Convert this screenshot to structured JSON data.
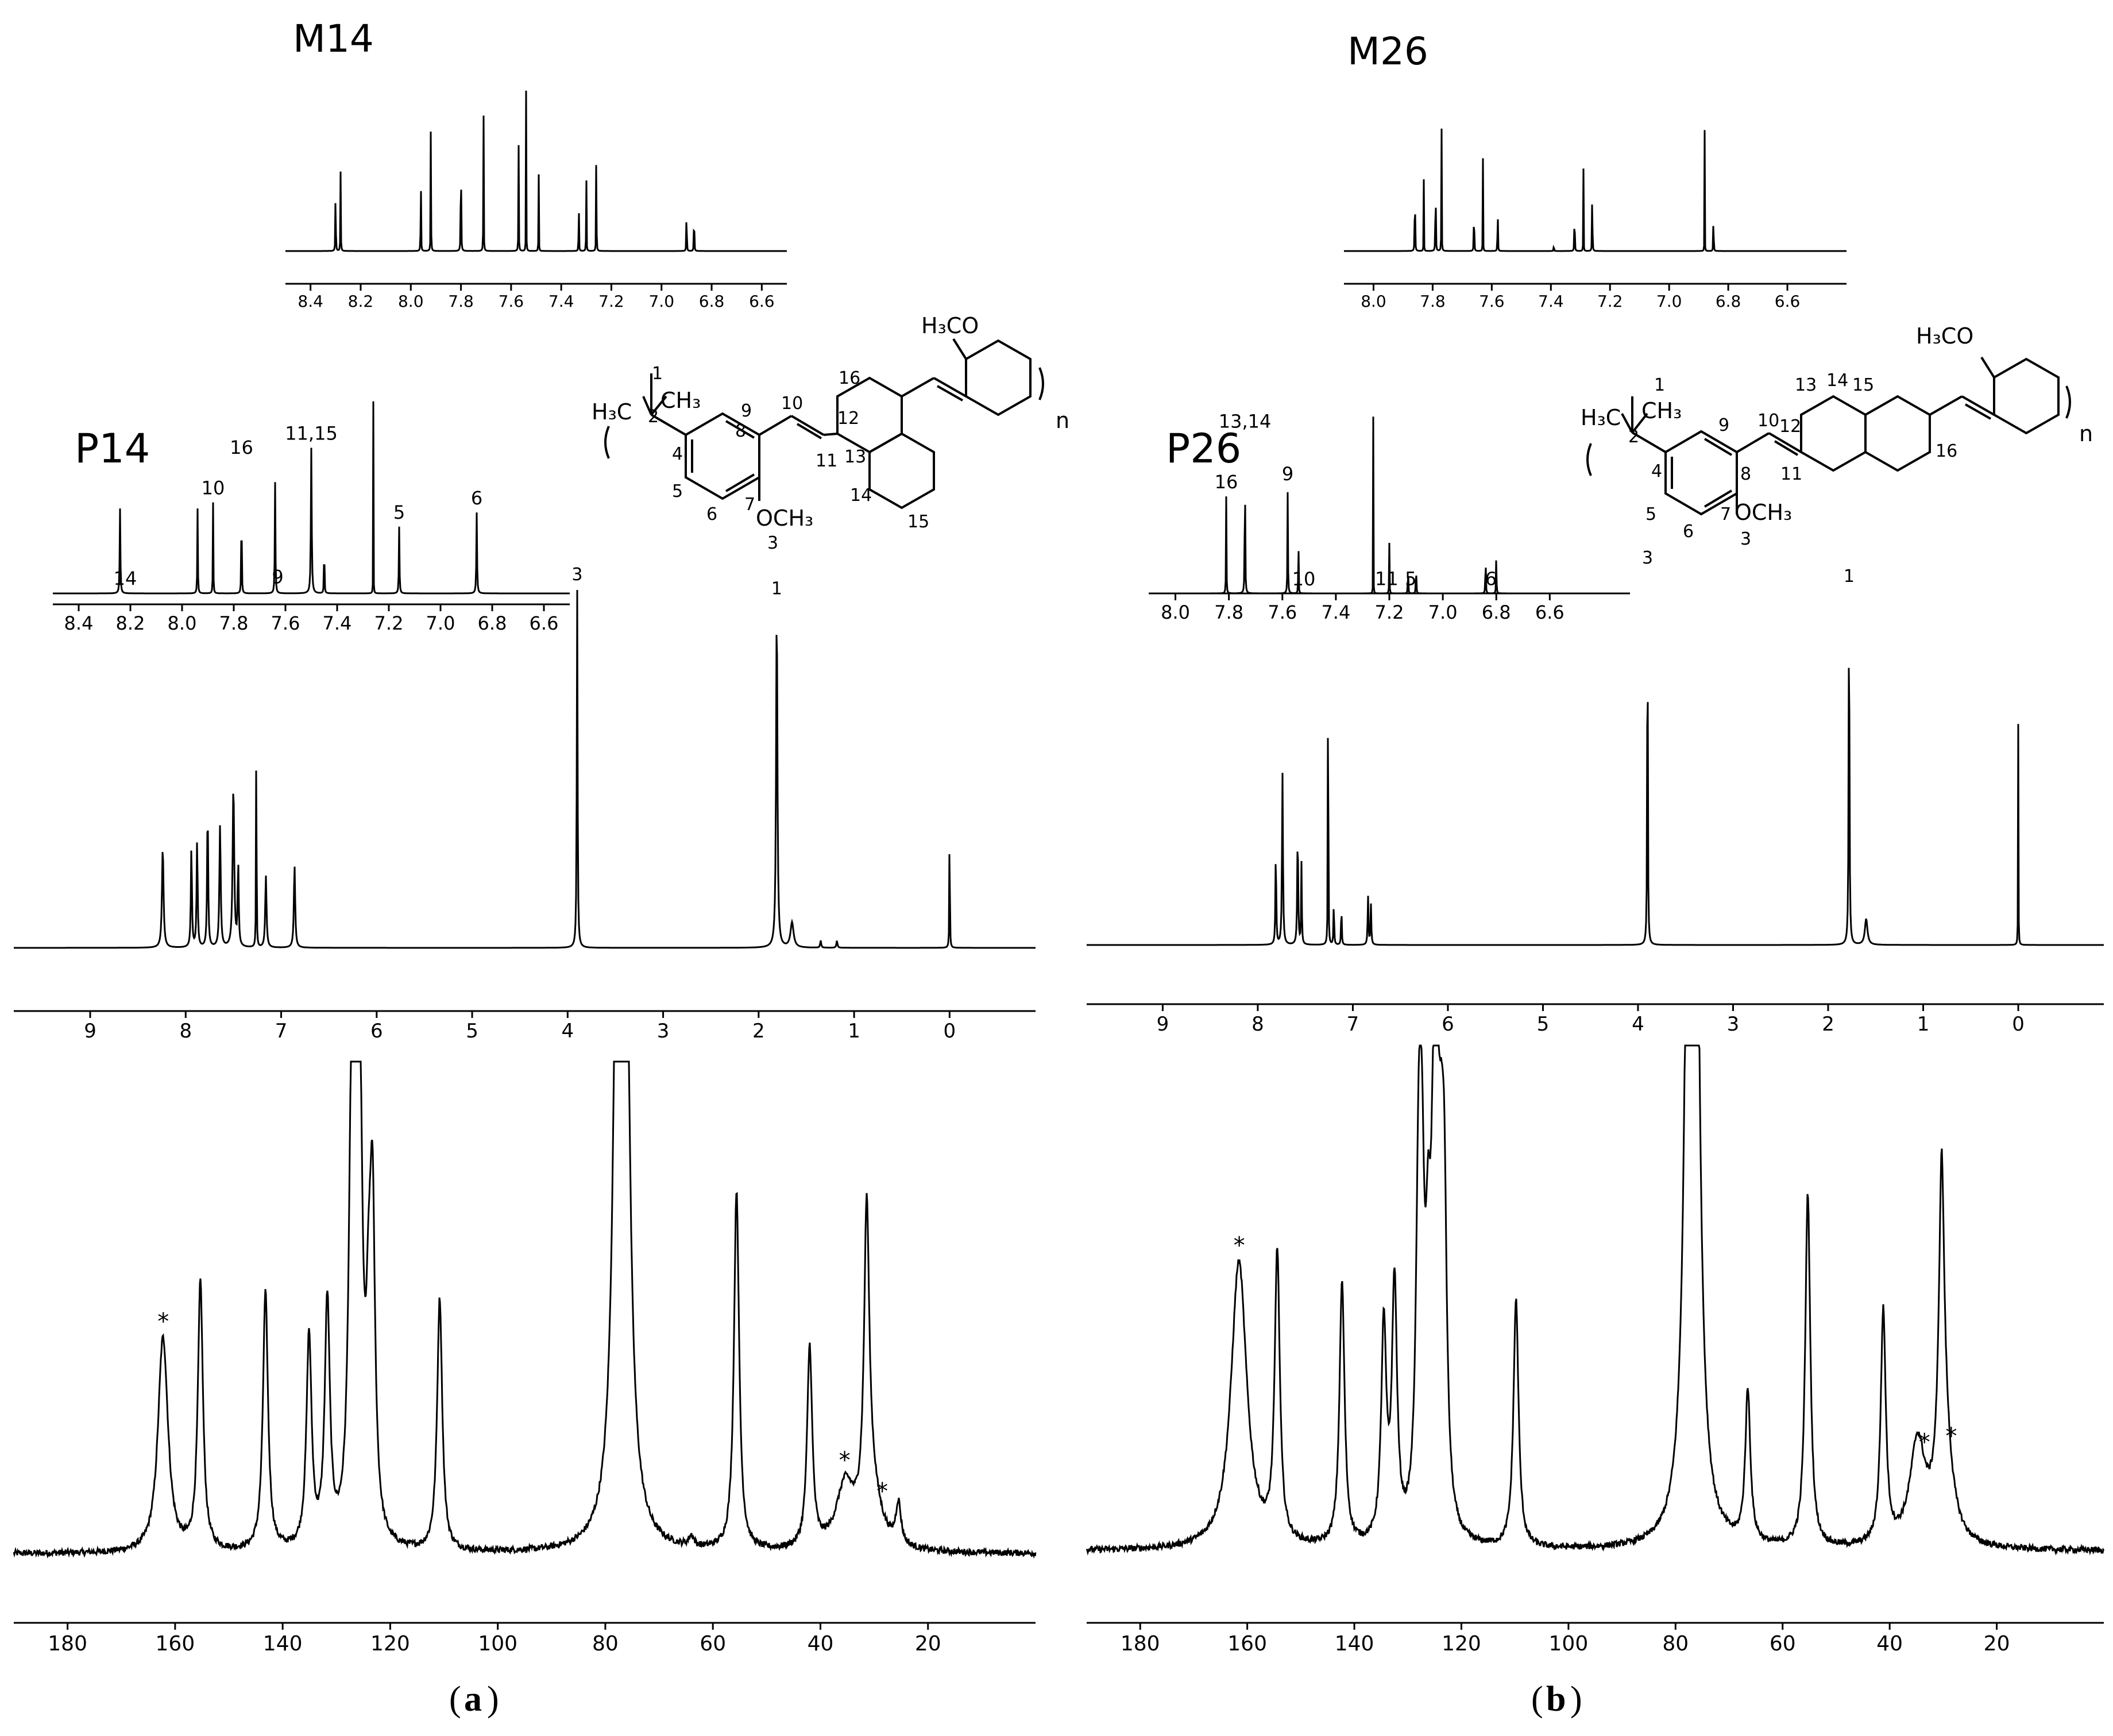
{
  "figure": {
    "panel_a_label": "a",
    "panel_b_label": "b",
    "paren_open": "(",
    "paren_close": ")",
    "ink_color": "#000000",
    "background_color": "#ffffff"
  },
  "chemistry": {
    "P14": {
      "substituent_methyl": "H₃C",
      "substituent_methyl2": "CH₃",
      "methoxy_side": "OCH₃",
      "methoxy_top": "H₃CO",
      "repeat_n": "n",
      "atom_labels": [
        "1",
        "2",
        "3",
        "4",
        "5",
        "6",
        "7",
        "8",
        "9",
        "10",
        "11",
        "12",
        "13",
        "14",
        "15",
        "16"
      ]
    },
    "P26": {
      "substituent_methyl": "H₃C",
      "substituent_methyl2": "CH₃",
      "methoxy_side": "OCH₃",
      "methoxy_top": "H₃CO",
      "repeat_n": "n",
      "atom_labels": [
        "1",
        "2",
        "3",
        "4",
        "5",
        "6",
        "7",
        "8",
        "9",
        "10",
        "11",
        "12",
        "13",
        "14",
        "15",
        "16"
      ]
    }
  },
  "chart_data": [
    {
      "id": "M14_inset",
      "type": "line",
      "title": "M14",
      "xlabel": "",
      "ylabel": "",
      "xlim": [
        8.5,
        6.5
      ],
      "x_ticks": [
        8.4,
        8.2,
        8.0,
        7.8,
        7.6,
        7.4,
        7.2,
        7.0,
        6.8,
        6.6
      ],
      "x_tick_labels": [
        "8.4",
        "8.2",
        "8.0",
        "7.8",
        "7.6",
        "7.4",
        "7.2",
        "7.0",
        "6.8",
        "6.6"
      ],
      "peaks": [
        {
          "x": 8.3,
          "h": 0.35,
          "w": 0.013
        },
        {
          "x": 8.28,
          "h": 0.33,
          "w": 0.013
        },
        {
          "x": 7.96,
          "h": 0.55,
          "w": 0.01
        },
        {
          "x": 7.92,
          "h": 0.7,
          "w": 0.01
        },
        {
          "x": 7.8,
          "h": 1.0,
          "w": 0.01
        },
        {
          "x": 7.71,
          "h": 0.78,
          "w": 0.01
        },
        {
          "x": 7.57,
          "h": 0.45,
          "w": 0.012
        },
        {
          "x": 7.54,
          "h": 0.68,
          "w": 0.009
        },
        {
          "x": 7.49,
          "h": 0.42,
          "w": 0.009
        },
        {
          "x": 7.33,
          "h": 0.4,
          "w": 0.009
        },
        {
          "x": 7.3,
          "h": 0.5,
          "w": 0.009
        },
        {
          "x": 7.26,
          "h": 0.9,
          "w": 0.008
        },
        {
          "x": 6.9,
          "h": 0.55,
          "w": 0.008
        },
        {
          "x": 6.87,
          "h": 0.55,
          "w": 0.008
        }
      ],
      "peak_labels": []
    },
    {
      "id": "M26_inset",
      "type": "line",
      "title": "M26",
      "xlabel": "",
      "ylabel": "",
      "xlim": [
        8.1,
        6.4
      ],
      "x_ticks": [
        8.0,
        7.8,
        7.6,
        7.4,
        7.2,
        7.0,
        6.8,
        6.6
      ],
      "x_tick_labels": [
        "8.0",
        "7.8",
        "7.6",
        "7.4",
        "7.2",
        "7.0",
        "6.8",
        "6.6"
      ],
      "peaks": [
        {
          "x": 7.86,
          "h": 0.75,
          "w": 0.009
        },
        {
          "x": 7.83,
          "h": 0.3,
          "w": 0.009
        },
        {
          "x": 7.79,
          "h": 0.8,
          "w": 0.009
        },
        {
          "x": 7.77,
          "h": 0.7,
          "w": 0.009
        },
        {
          "x": 7.66,
          "h": 0.6,
          "w": 0.008
        },
        {
          "x": 7.63,
          "h": 0.45,
          "w": 0.008
        },
        {
          "x": 7.58,
          "h": 0.5,
          "w": 0.008
        },
        {
          "x": 7.39,
          "h": 0.08,
          "w": 0.008
        },
        {
          "x": 7.32,
          "h": 0.55,
          "w": 0.008
        },
        {
          "x": 7.29,
          "h": 0.4,
          "w": 0.008
        },
        {
          "x": 7.26,
          "h": 0.9,
          "w": 0.007
        },
        {
          "x": 6.88,
          "h": 0.55,
          "w": 0.007
        },
        {
          "x": 6.85,
          "h": 0.55,
          "w": 0.007
        }
      ],
      "peak_labels": []
    },
    {
      "id": "P14_inset",
      "type": "line",
      "title": "P14",
      "xlabel": "",
      "ylabel": "",
      "xlim": [
        8.5,
        6.5
      ],
      "x_ticks": [
        8.4,
        8.2,
        8.0,
        7.8,
        7.6,
        7.4,
        7.2,
        7.0,
        6.8,
        6.6
      ],
      "x_tick_labels": [
        "8.4",
        "8.2",
        "8.0",
        "7.8",
        "7.6",
        "7.4",
        "7.2",
        "7.0",
        "6.8",
        "6.6"
      ],
      "peaks": [
        {
          "x": 8.24,
          "h": 0.42,
          "w": 0.025
        },
        {
          "x": 7.94,
          "h": 0.42,
          "w": 0.018
        },
        {
          "x": 7.88,
          "h": 0.45,
          "w": 0.015
        },
        {
          "x": 7.77,
          "h": 0.65,
          "w": 0.015
        },
        {
          "x": 7.64,
          "h": 0.55,
          "w": 0.022
        },
        {
          "x": 7.5,
          "h": 0.72,
          "w": 0.03
        },
        {
          "x": 7.45,
          "h": 0.35,
          "w": 0.015
        },
        {
          "x": 7.26,
          "h": 0.95,
          "w": 0.008
        },
        {
          "x": 7.16,
          "h": 0.33,
          "w": 0.022
        },
        {
          "x": 6.86,
          "h": 0.4,
          "w": 0.025
        }
      ],
      "peak_labels": [
        {
          "x": 8.22,
          "text": "14"
        },
        {
          "x": 7.88,
          "text": "10"
        },
        {
          "x": 7.77,
          "text": "16"
        },
        {
          "x": 7.63,
          "text": "9"
        },
        {
          "x": 7.5,
          "text": "11,15"
        },
        {
          "x": 7.16,
          "text": "5"
        },
        {
          "x": 6.86,
          "text": "6"
        }
      ]
    },
    {
      "id": "P26_inset",
      "type": "line",
      "title": "P26",
      "xlabel": "",
      "ylabel": "",
      "xlim": [
        8.1,
        6.3
      ],
      "x_ticks": [
        8.0,
        7.8,
        7.6,
        7.4,
        7.2,
        7.0,
        6.8,
        6.6
      ],
      "x_tick_labels": [
        "8.0",
        "7.8",
        "7.6",
        "7.4",
        "7.2",
        "7.0",
        "6.8",
        "6.6"
      ],
      "peaks": [
        {
          "x": 7.81,
          "h": 0.48,
          "w": 0.015
        },
        {
          "x": 7.74,
          "h": 0.78,
          "w": 0.018
        },
        {
          "x": 7.58,
          "h": 0.52,
          "w": 0.018
        },
        {
          "x": 7.54,
          "h": 0.4,
          "w": 0.012
        },
        {
          "x": 7.26,
          "h": 1.0,
          "w": 0.007
        },
        {
          "x": 7.2,
          "h": 0.25,
          "w": 0.013
        },
        {
          "x": 7.13,
          "h": 0.22,
          "w": 0.013
        },
        {
          "x": 7.1,
          "h": 0.25,
          "w": 0.013
        },
        {
          "x": 6.84,
          "h": 0.27,
          "w": 0.015
        },
        {
          "x": 6.8,
          "h": 0.22,
          "w": 0.015
        }
      ],
      "peak_labels": [
        {
          "x": 7.81,
          "text": "16"
        },
        {
          "x": 7.74,
          "text": "13,14"
        },
        {
          "x": 7.58,
          "text": "9"
        },
        {
          "x": 7.52,
          "text": "10"
        },
        {
          "x": 7.21,
          "text": "11"
        },
        {
          "x": 7.12,
          "text": "5"
        },
        {
          "x": 6.82,
          "text": "6"
        }
      ]
    },
    {
      "id": "P14_1H",
      "type": "line",
      "title": "",
      "xlabel": "",
      "ylabel": "",
      "xlim": [
        9.8,
        -0.9
      ],
      "x_ticks": [
        9,
        8,
        7,
        6,
        5,
        4,
        3,
        2,
        1,
        0
      ],
      "x_tick_labels": [
        "9",
        "8",
        "7",
        "6",
        "5",
        "4",
        "3",
        "2",
        "1",
        "0"
      ],
      "peaks": [
        {
          "x": 8.24,
          "h": 0.28,
          "w": 0.03
        },
        {
          "x": 7.94,
          "h": 0.28,
          "w": 0.02
        },
        {
          "x": 7.88,
          "h": 0.3,
          "w": 0.02
        },
        {
          "x": 7.77,
          "h": 0.39,
          "w": 0.02
        },
        {
          "x": 7.64,
          "h": 0.34,
          "w": 0.025
        },
        {
          "x": 7.5,
          "h": 0.45,
          "w": 0.03
        },
        {
          "x": 7.45,
          "h": 0.23,
          "w": 0.02
        },
        {
          "x": 7.26,
          "h": 0.74,
          "w": 0.008
        },
        {
          "x": 7.16,
          "h": 0.2,
          "w": 0.025
        },
        {
          "x": 6.86,
          "h": 0.23,
          "w": 0.025
        },
        {
          "x": 3.9,
          "h": 1.0,
          "w": 0.015
        },
        {
          "x": 1.81,
          "h": 0.96,
          "w": 0.025
        },
        {
          "x": 1.65,
          "h": 0.07,
          "w": 0.06
        },
        {
          "x": 1.35,
          "h": 0.02,
          "w": 0.02
        },
        {
          "x": 1.18,
          "h": 0.02,
          "w": 0.02
        },
        {
          "x": 0.0,
          "h": 0.45,
          "w": 0.008
        }
      ],
      "peak_labels": [
        {
          "x": 3.9,
          "text": "3"
        },
        {
          "x": 1.81,
          "text": "1"
        }
      ]
    },
    {
      "id": "P26_1H",
      "type": "line",
      "title": "",
      "xlabel": "",
      "ylabel": "",
      "xlim": [
        9.8,
        -0.9
      ],
      "x_ticks": [
        9,
        8,
        7,
        6,
        5,
        4,
        3,
        2,
        1,
        0
      ],
      "x_tick_labels": [
        "9",
        "8",
        "7",
        "6",
        "5",
        "4",
        "3",
        "2",
        "1",
        "0"
      ],
      "peaks": [
        {
          "x": 7.81,
          "h": 0.26,
          "w": 0.015
        },
        {
          "x": 7.74,
          "h": 0.46,
          "w": 0.018
        },
        {
          "x": 7.58,
          "h": 0.3,
          "w": 0.018
        },
        {
          "x": 7.54,
          "h": 0.22,
          "w": 0.012
        },
        {
          "x": 7.26,
          "h": 1.45,
          "w": 0.006
        },
        {
          "x": 7.2,
          "h": 0.12,
          "w": 0.012
        },
        {
          "x": 7.12,
          "h": 0.11,
          "w": 0.012
        },
        {
          "x": 6.84,
          "h": 0.13,
          "w": 0.015
        },
        {
          "x": 6.81,
          "h": 0.11,
          "w": 0.015
        },
        {
          "x": 3.9,
          "h": 1.0,
          "w": 0.012
        },
        {
          "x": 1.78,
          "h": 0.95,
          "w": 0.015
        },
        {
          "x": 1.6,
          "h": 0.07,
          "w": 0.05
        },
        {
          "x": 0.0,
          "h": 0.6,
          "w": 0.006
        }
      ],
      "peak_labels": [
        {
          "x": 3.9,
          "text": "3"
        },
        {
          "x": 1.78,
          "text": "1"
        }
      ]
    },
    {
      "id": "P14_13C",
      "type": "line",
      "title": "",
      "xlabel": "",
      "ylabel": "",
      "xlim": [
        190,
        0
      ],
      "x_ticks": [
        180,
        160,
        140,
        120,
        100,
        80,
        60,
        40,
        20
      ],
      "x_tick_labels": [
        "180",
        "160",
        "140",
        "120",
        "100",
        "80",
        "60",
        "40",
        "20"
      ],
      "peaks": [
        {
          "x": 162.5,
          "h": 0.22,
          "w": 0.18
        },
        {
          "x": 162.0,
          "h": 0.22,
          "w": 0.18
        },
        {
          "x": 155.3,
          "h": 0.52,
          "w": 0.1
        },
        {
          "x": 143.2,
          "h": 0.5,
          "w": 0.1
        },
        {
          "x": 135.1,
          "h": 0.41,
          "w": 0.1
        },
        {
          "x": 131.7,
          "h": 0.47,
          "w": 0.1
        },
        {
          "x": 127.3,
          "h": 0.51,
          "w": 0.1
        },
        {
          "x": 126.8,
          "h": 0.48,
          "w": 0.1
        },
        {
          "x": 126.1,
          "h": 0.59,
          "w": 0.1
        },
        {
          "x": 125.6,
          "h": 0.53,
          "w": 0.1
        },
        {
          "x": 124.0,
          "h": 0.29,
          "w": 0.1
        },
        {
          "x": 123.3,
          "h": 0.6,
          "w": 0.1
        },
        {
          "x": 110.8,
          "h": 0.49,
          "w": 0.1
        },
        {
          "x": 77.6,
          "h": 1.0,
          "w": 0.15
        },
        {
          "x": 77.0,
          "h": 1.0,
          "w": 0.15
        },
        {
          "x": 76.4,
          "h": 1.0,
          "w": 0.15
        },
        {
          "x": 64.0,
          "h": 0.02,
          "w": 0.1
        },
        {
          "x": 55.6,
          "h": 0.7,
          "w": 0.1
        },
        {
          "x": 42.0,
          "h": 0.39,
          "w": 0.1
        },
        {
          "x": 35.4,
          "h": 0.12,
          "w": 0.35
        },
        {
          "x": 31.4,
          "h": 0.58,
          "w": 0.1
        },
        {
          "x": 30.5,
          "h": 0.11,
          "w": 0.35
        },
        {
          "x": 25.5,
          "h": 0.08,
          "w": 0.1
        }
      ],
      "peak_labels": [
        {
          "x": 162.2,
          "text": "*"
        },
        {
          "x": 35.5,
          "text": "*"
        },
        {
          "x": 28.5,
          "text": "*"
        }
      ]
    },
    {
      "id": "P26_13C",
      "type": "line",
      "title": "",
      "xlabel": "",
      "ylabel": "",
      "xlim": [
        190,
        0
      ],
      "x_ticks": [
        180,
        160,
        140,
        120,
        100,
        80,
        60,
        40,
        20
      ],
      "x_tick_labels": [
        "180",
        "160",
        "140",
        "120",
        "100",
        "80",
        "60",
        "40",
        "20"
      ],
      "peaks": [
        {
          "x": 161.8,
          "h": 0.3,
          "w": 0.3
        },
        {
          "x": 161.3,
          "h": 0.28,
          "w": 0.3
        },
        {
          "x": 154.4,
          "h": 0.57,
          "w": 0.1
        },
        {
          "x": 142.3,
          "h": 0.52,
          "w": 0.1
        },
        {
          "x": 134.5,
          "h": 0.42,
          "w": 0.1
        },
        {
          "x": 132.5,
          "h": 0.5,
          "w": 0.1
        },
        {
          "x": 128.0,
          "h": 0.58,
          "w": 0.1
        },
        {
          "x": 127.4,
          "h": 0.55,
          "w": 0.1
        },
        {
          "x": 126.2,
          "h": 0.39,
          "w": 0.1
        },
        {
          "x": 125.2,
          "h": 0.58,
          "w": 0.1
        },
        {
          "x": 124.5,
          "h": 0.51,
          "w": 0.1
        },
        {
          "x": 123.8,
          "h": 0.38,
          "w": 0.1
        },
        {
          "x": 123.2,
          "h": 0.54,
          "w": 0.1
        },
        {
          "x": 109.8,
          "h": 0.49,
          "w": 0.1
        },
        {
          "x": 77.5,
          "h": 1.0,
          "w": 0.15
        },
        {
          "x": 76.9,
          "h": 1.0,
          "w": 0.15
        },
        {
          "x": 76.3,
          "h": 1.0,
          "w": 0.15
        },
        {
          "x": 66.5,
          "h": 0.3,
          "w": 0.1
        },
        {
          "x": 55.3,
          "h": 0.7,
          "w": 0.1
        },
        {
          "x": 41.2,
          "h": 0.46,
          "w": 0.1
        },
        {
          "x": 34.8,
          "h": 0.2,
          "w": 0.3
        },
        {
          "x": 30.3,
          "h": 0.58,
          "w": 0.1
        },
        {
          "x": 29.8,
          "h": 0.2,
          "w": 0.3
        }
      ],
      "peak_labels": [
        {
          "x": 161.5,
          "text": "*"
        },
        {
          "x": 33.5,
          "text": "*"
        },
        {
          "x": 28.5,
          "text": "*"
        }
      ]
    }
  ]
}
